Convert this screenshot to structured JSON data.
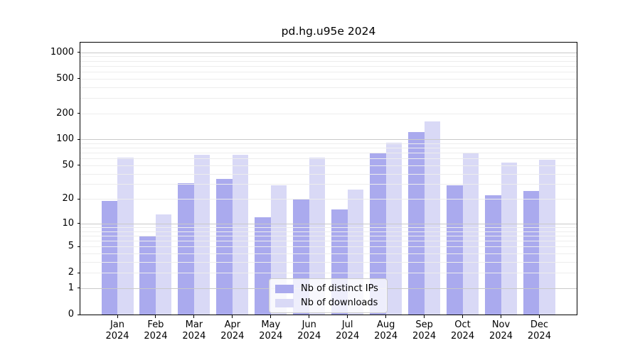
{
  "chart_data": {
    "type": "bar",
    "title": "pd.hg.u95e 2024",
    "x_categories": [
      "Jan",
      "Feb",
      "Mar",
      "Apr",
      "May",
      "Jun",
      "Jul",
      "Aug",
      "Sep",
      "Oct",
      "Nov",
      "Dec"
    ],
    "x_year": "2024",
    "y_ticks": [
      0,
      1,
      2,
      5,
      10,
      20,
      50,
      100,
      200,
      500,
      1000
    ],
    "y_scale": "log10(1+value)",
    "ylim": [
      0,
      1295
    ],
    "grid": "on",
    "legend_position": "inside-lower-center",
    "series": [
      {
        "name": "Nb of distinct IPs",
        "color": "#aaaaee",
        "values": [
          19,
          7,
          31,
          35,
          12,
          20,
          15,
          70,
          122,
          29,
          22,
          25
        ]
      },
      {
        "name": "Nb of downloads",
        "color": "#d9d9f6",
        "values": [
          61,
          13,
          66,
          66,
          29,
          61,
          26,
          91,
          162,
          70,
          54,
          58
        ]
      }
    ]
  },
  "colors": {
    "grid_major": "#c9c9c9",
    "grid_minor": "#ededed",
    "axis": "#000000",
    "background": "#ffffff",
    "legend_border": "#cccccc"
  }
}
